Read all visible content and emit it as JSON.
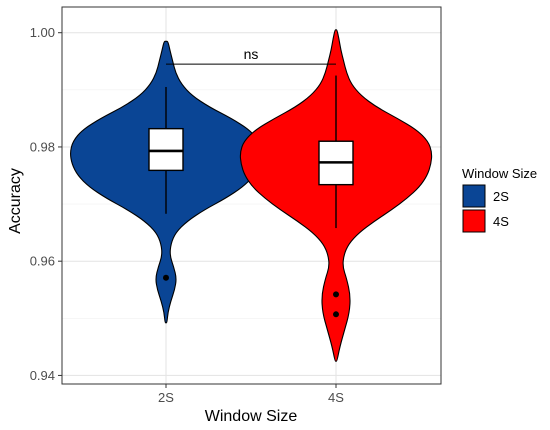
{
  "chart_data": {
    "type": "violin",
    "xlabel": "Window Size",
    "ylabel": "Accuracy",
    "ylim": [
      0.9385,
      1.0045
    ],
    "y_ticks": [
      0.94,
      0.96,
      0.98,
      1.0
    ],
    "y_tick_labels": [
      "0.94",
      "0.96",
      "0.98",
      "1.00"
    ],
    "categories": [
      "2S",
      "4S"
    ],
    "grid": true,
    "legend": {
      "title": "Window Size",
      "position": "right",
      "entries": [
        {
          "label": "2S",
          "color": "#0a4595"
        },
        {
          "label": "4S",
          "color": "#ff0000"
        }
      ]
    },
    "annotation": {
      "text": "ns",
      "y": 0.9945,
      "between": [
        "2S",
        "4S"
      ]
    },
    "series": [
      {
        "name": "2S",
        "color": "#0a4595",
        "violin_profile": [
          [
            0.9492,
            0.01
          ],
          [
            0.951,
            0.02
          ],
          [
            0.953,
            0.05
          ],
          [
            0.955,
            0.09
          ],
          [
            0.957,
            0.11
          ],
          [
            0.959,
            0.08
          ],
          [
            0.961,
            0.04
          ],
          [
            0.963,
            0.05
          ],
          [
            0.965,
            0.1
          ],
          [
            0.967,
            0.22
          ],
          [
            0.969,
            0.4
          ],
          [
            0.971,
            0.62
          ],
          [
            0.973,
            0.8
          ],
          [
            0.975,
            0.92
          ],
          [
            0.977,
            0.98
          ],
          [
            0.979,
            1.0
          ],
          [
            0.981,
            0.97
          ],
          [
            0.983,
            0.87
          ],
          [
            0.985,
            0.68
          ],
          [
            0.987,
            0.45
          ],
          [
            0.989,
            0.27
          ],
          [
            0.991,
            0.16
          ],
          [
            0.993,
            0.1
          ],
          [
            0.995,
            0.07
          ],
          [
            0.997,
            0.04
          ],
          [
            0.9985,
            0.02
          ]
        ],
        "box": {
          "whisker_low": 0.9683,
          "q1": 0.9759,
          "median": 0.9793,
          "q3": 0.9832,
          "whisker_high": 0.9905
        },
        "outliers": [
          0.9571
        ]
      },
      {
        "name": "4S",
        "color": "#ff0000",
        "violin_profile": [
          [
            0.9425,
            0.01
          ],
          [
            0.945,
            0.04
          ],
          [
            0.948,
            0.09
          ],
          [
            0.951,
            0.14
          ],
          [
            0.954,
            0.15
          ],
          [
            0.957,
            0.11
          ],
          [
            0.959,
            0.07
          ],
          [
            0.961,
            0.08
          ],
          [
            0.963,
            0.13
          ],
          [
            0.965,
            0.24
          ],
          [
            0.967,
            0.4
          ],
          [
            0.969,
            0.58
          ],
          [
            0.971,
            0.74
          ],
          [
            0.973,
            0.87
          ],
          [
            0.975,
            0.95
          ],
          [
            0.977,
            0.99
          ],
          [
            0.979,
            1.0
          ],
          [
            0.981,
            0.96
          ],
          [
            0.983,
            0.84
          ],
          [
            0.985,
            0.64
          ],
          [
            0.987,
            0.42
          ],
          [
            0.989,
            0.26
          ],
          [
            0.991,
            0.16
          ],
          [
            0.993,
            0.11
          ],
          [
            0.995,
            0.08
          ],
          [
            0.997,
            0.05
          ],
          [
            0.999,
            0.03
          ],
          [
            1.0005,
            0.01
          ]
        ],
        "box": {
          "whisker_low": 0.9658,
          "q1": 0.9734,
          "median": 0.9773,
          "q3": 0.981,
          "whisker_high": 0.9925
        },
        "outliers": [
          0.9542,
          0.9507
        ]
      }
    ]
  }
}
